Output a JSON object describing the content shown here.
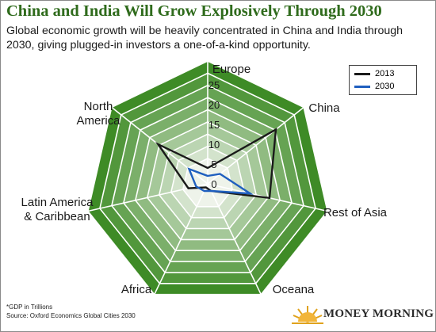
{
  "header": {
    "title": "China and India Will Grow Explosively Through 2030",
    "subtitle": "Global economic growth will be heavily concentrated in China and India through 2030, giving plugged-in investors a one-of-a-kind opportunity."
  },
  "chart_data": {
    "type": "radar",
    "categories": [
      "Europe",
      "China",
      "Rest of Asia",
      "Oceana",
      "Africa",
      "Latin America\n& Caribbean",
      "North\nAmerica"
    ],
    "axis_ticks": [
      "0",
      "5",
      "10",
      "15",
      "20",
      "25"
    ],
    "r_range": [
      0,
      25
    ],
    "series": [
      {
        "name": "2013",
        "values": [
          4,
          22,
          16,
          2,
          1,
          5,
          16
        ],
        "color": "#1a1a1a"
      },
      {
        "name": "2030",
        "values": [
          2,
          4,
          11,
          2,
          2,
          3,
          6
        ],
        "color": "#1f5fbf"
      }
    ],
    "legend_position": "top-right",
    "grid": true
  },
  "footnotes": {
    "unit": "*GDP in Trillions",
    "source": "Source: Oxford Economics Global Cities 2030"
  },
  "brand": {
    "name": "MONEY MORNING",
    "colors": {
      "title": "#2f6b1c",
      "ring_dark": "#3e8b26",
      "ring_light": "#eef3ea"
    }
  }
}
